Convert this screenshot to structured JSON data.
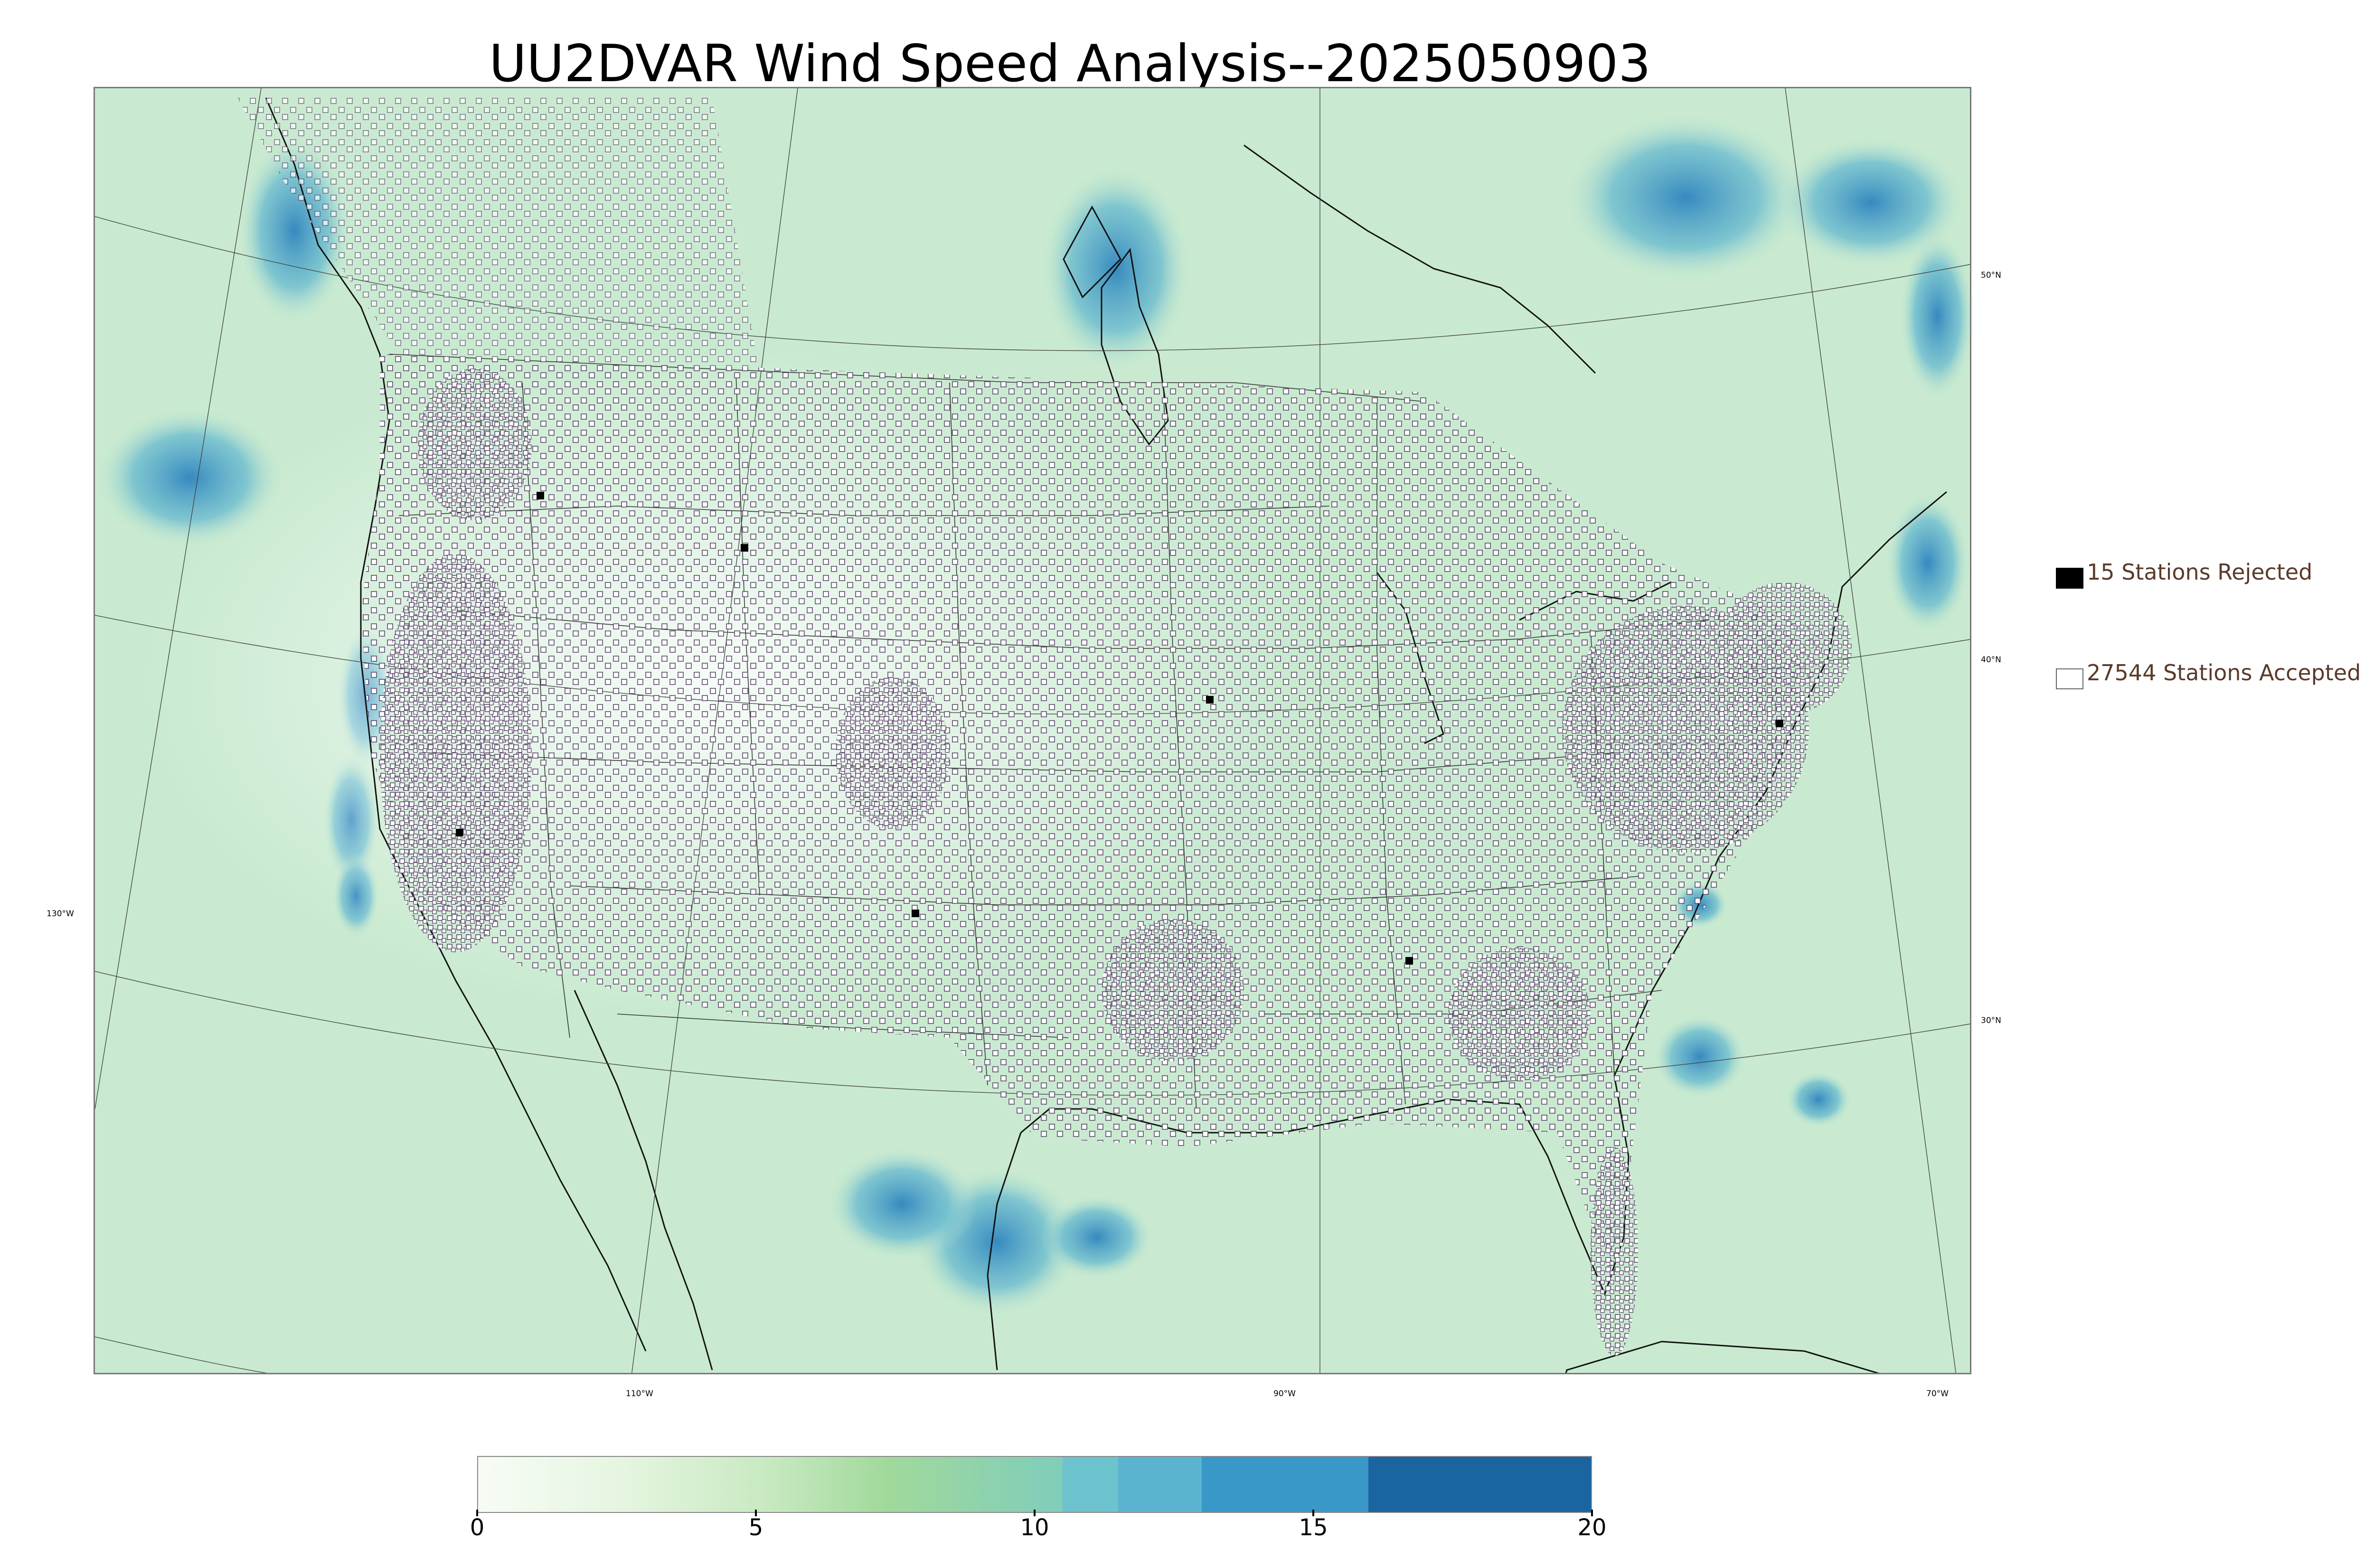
{
  "title": "UU2DVAR Wind Speed Analysis--2025050903",
  "map": {
    "lat_labels": [
      "50°N",
      "40°N",
      "30°N"
    ],
    "lon_labels": [
      "130°W",
      "110°W",
      "90°W",
      "70°W"
    ],
    "land_color": "#eaf7e4",
    "ocean_color": "#c9ead0",
    "wind_high_color": "#3d9cc6",
    "station_color": "#5a4a6a"
  },
  "legend": {
    "rejected_label": "15 Stations Rejected",
    "accepted_label": "27544 Stations Accepted",
    "rejected_count": 15,
    "accepted_count": 27544
  },
  "colorbar": {
    "ticks": [
      "0",
      "5",
      "10",
      "15",
      "20"
    ],
    "min": 0,
    "max": 20,
    "bins": [
      {
        "from": 0,
        "to": 10.5,
        "color": "gradient"
      },
      {
        "from": 10.5,
        "to": 11.5,
        "color": "#6cc3cd"
      },
      {
        "from": 11.5,
        "to": 13,
        "color": "#5ab4d0"
      },
      {
        "from": 13,
        "to": 16,
        "color": "#3a98c8"
      },
      {
        "from": 16,
        "to": 20,
        "color": "#1a64a0"
      }
    ]
  }
}
